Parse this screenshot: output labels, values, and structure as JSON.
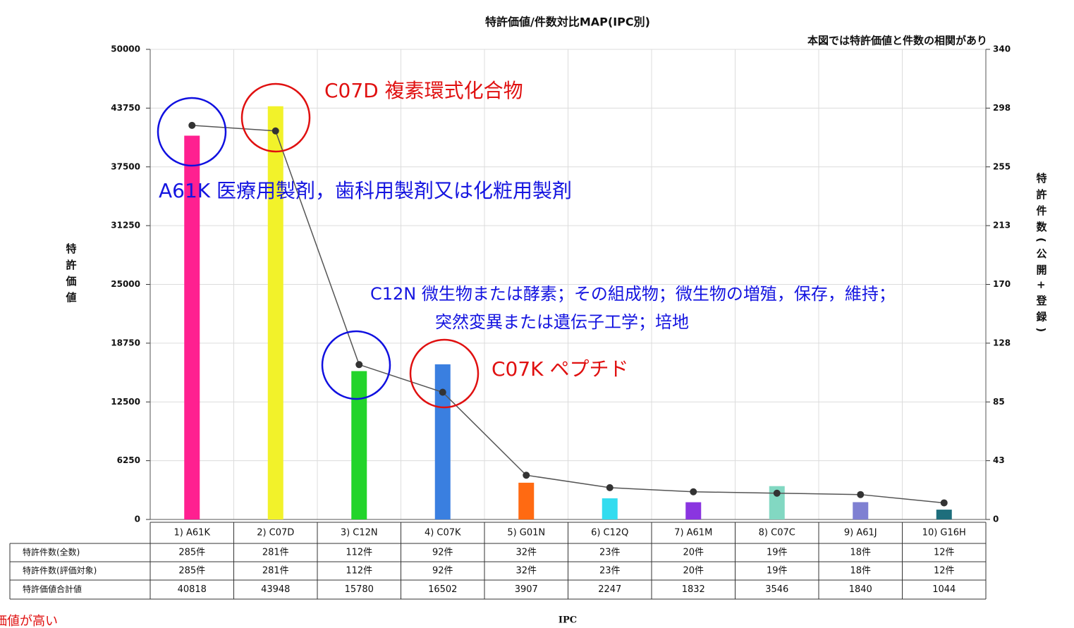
{
  "chart_data": {
    "type": "bar_line",
    "title": "特許価値/件数対比MAP(IPC別)",
    "subtitle": "本図では特許価値と件数の相関があり",
    "y_label": "特許価値",
    "y2_label": "特許件数(公開+登録)",
    "x_label": "IPC",
    "categories": [
      "1) A61K",
      "2) C07D",
      "3) C12N",
      "4) C07K",
      "5) G01N",
      "6) C12Q",
      "7) A61M",
      "8) C07C",
      "9) A61J",
      "10) G16H"
    ],
    "series": [
      {
        "name": "特許価値合計値",
        "type": "bar",
        "colors": [
          "#ff2090",
          "#f2f22a",
          "#22d42a",
          "#3a7fe0",
          "#ff6a12",
          "#33dcef",
          "#8a35e0",
          "#82d8c2",
          "#7f80d2",
          "#1e6e7c"
        ],
        "values": [
          40818,
          43948,
          15780,
          16502,
          3907,
          2247,
          1832,
          3546,
          1840,
          1044
        ]
      },
      {
        "name": "特許件数(全数)",
        "type": "line",
        "axis": "y2",
        "color": "#555555",
        "values": [
          285,
          281,
          112,
          92,
          32,
          23,
          20,
          19,
          18,
          12
        ],
        "value_labels": [
          "285件",
          "281件",
          "112件",
          "92件",
          "32件",
          "23件",
          "20件",
          "19件",
          "18件",
          "12件"
        ]
      }
    ],
    "ylim": [
      0,
      50000
    ],
    "yticks": [
      0,
      6250,
      12500,
      18750,
      25000,
      31250,
      37500,
      43750,
      50000
    ],
    "y2lim": [
      0,
      340
    ],
    "y2ticks": [
      0,
      {
        "value": 42.5,
        "label": "43"
      },
      85,
      {
        "value": 127.5,
        "label": "128"
      },
      170,
      {
        "value": 212.5,
        "label": "213"
      },
      255,
      {
        "value": 297.5,
        "label": "298"
      },
      340
    ],
    "grid": true,
    "table_row_labels": [
      "特許件数(全数)",
      "特許件数(評価対象)",
      "特許価値合計値"
    ],
    "table_eval_counts": [
      "285件",
      "281件",
      "112件",
      "92件",
      "32件",
      "23件",
      "20件",
      "19件",
      "18件",
      "12件"
    ],
    "annotations": [
      {
        "text": "C07D 複素環式化合物",
        "color": "red"
      },
      {
        "text": "A61K 医療用製剤，歯科用製剤又は化粧用製剤",
        "color": "blue"
      },
      {
        "text": "C12N 微生物または酵素；その組成物；微生物の増殖，保存，維持；",
        "color": "blue"
      },
      {
        "text": "突然変異または遺伝子工学；培地",
        "color": "blue"
      },
      {
        "text": "C07K ペプチド",
        "color": "red"
      },
      {
        "text": "価値が高い",
        "color": "red"
      }
    ]
  }
}
